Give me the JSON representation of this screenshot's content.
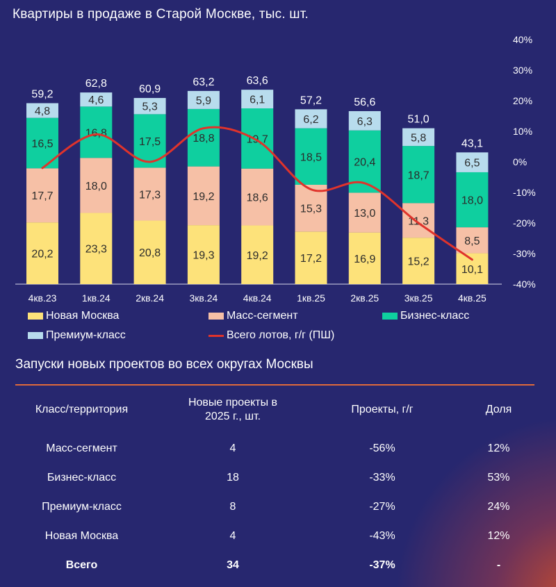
{
  "chart_data": {
    "type": "bar",
    "title": "Квартиры в продаже  в Старой Москве, тыс. шт.",
    "categories": [
      "4кв.23",
      "1кв.24",
      "2кв.24",
      "3кв.24",
      "4кв.24",
      "1кв.25",
      "2кв.25",
      "3кв.25",
      "4кв.25"
    ],
    "series": [
      {
        "name": "Новая Москва",
        "color": "#fde27a",
        "values": [
          20.2,
          23.3,
          20.8,
          19.3,
          19.2,
          17.2,
          16.9,
          15.2,
          10.1
        ],
        "labels": [
          "20,2",
          "23,3",
          "20,8",
          "19,3",
          "19,2",
          "17,2",
          "16,9",
          "15,2",
          "10,1"
        ]
      },
      {
        "name": "Масс-сегмент",
        "color": "#f6c0a6",
        "values": [
          17.7,
          18.0,
          17.3,
          19.2,
          18.6,
          15.3,
          13.0,
          11.3,
          8.5
        ],
        "labels": [
          "17,7",
          "18,0",
          "17,3",
          "19,2",
          "18,6",
          "15,3",
          "13,0",
          "11,3",
          "8,5"
        ]
      },
      {
        "name": "Бизнес-класс",
        "color": "#0fcf9f",
        "values": [
          16.5,
          16.8,
          17.5,
          18.8,
          19.7,
          18.5,
          20.4,
          18.7,
          18.0
        ],
        "labels": [
          "16,5",
          "16,8",
          "17,5",
          "18,8",
          "19,7",
          "18,5",
          "20,4",
          "18,7",
          "18,0"
        ]
      },
      {
        "name": "Премиум-класс",
        "color": "#b8dced",
        "values": [
          4.8,
          4.6,
          5.3,
          5.9,
          6.1,
          6.2,
          6.3,
          5.8,
          6.5
        ],
        "labels": [
          "4,8",
          "4,6",
          "5,3",
          "5,9",
          "6,1",
          "6,2",
          "6,3",
          "5,8",
          "6,5"
        ]
      }
    ],
    "totals": [
      59.2,
      62.8,
      60.9,
      63.2,
      63.6,
      57.2,
      56.6,
      51.0,
      43.1
    ],
    "total_labels": [
      "59,2",
      "62,8",
      "60,9",
      "63,2",
      "63,6",
      "57,2",
      "56,6",
      "51,0",
      "43,1"
    ],
    "line_series": {
      "name": "Всего лотов, г/г (ПШ)",
      "color": "#e0332b",
      "values": [
        -2,
        9,
        0,
        11,
        7,
        -9,
        -7,
        -20,
        -32
      ]
    },
    "ylim": [
      0,
      80
    ],
    "y2lim": [
      -40,
      40
    ],
    "y2_ticks": [
      "40%",
      "30%",
      "20%",
      "10%",
      "0%",
      "-10%",
      "-20%",
      "-30%",
      "-40%"
    ],
    "legend_position": "bottom",
    "grid": false
  },
  "table": {
    "title": "Запуски новых проектов во всех округах Москвы",
    "headers": {
      "class": "Класс/территория",
      "projects_line1": "Новые проекты  в",
      "projects_line2": "2025 г., шт.",
      "yoy": "Проекты, г/г",
      "share": "Доля"
    },
    "rows": [
      {
        "class": "Масс-сегмент",
        "projects": "4",
        "yoy": "-56%",
        "share": "12%"
      },
      {
        "class": "Бизнес-класс",
        "projects": "18",
        "yoy": "-33%",
        "share": "53%"
      },
      {
        "class": "Премиум-класс",
        "projects": "8",
        "yoy": "-27%",
        "share": "24%"
      },
      {
        "class": "Новая Москва",
        "projects": "4",
        "yoy": "-43%",
        "share": "12%"
      }
    ],
    "total": {
      "class": "Всего",
      "projects": "34",
      "yoy": "-37%",
      "share": "-"
    }
  }
}
